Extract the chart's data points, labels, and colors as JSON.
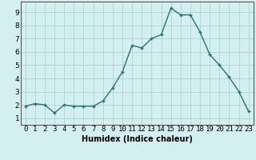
{
  "title": "",
  "xlabel": "Humidex (Indice chaleur)",
  "ylabel": "",
  "x": [
    0,
    1,
    2,
    3,
    4,
    5,
    6,
    7,
    8,
    9,
    10,
    11,
    12,
    13,
    14,
    15,
    16,
    17,
    18,
    19,
    20,
    21,
    22,
    23
  ],
  "y": [
    1.9,
    2.1,
    2.0,
    1.4,
    2.0,
    1.9,
    1.9,
    1.9,
    2.3,
    3.3,
    4.5,
    6.5,
    6.3,
    7.0,
    7.3,
    9.3,
    8.8,
    8.8,
    7.5,
    5.8,
    5.0,
    4.1,
    3.0,
    1.5
  ],
  "line_color": "#2d7070",
  "marker": "+",
  "marker_size": 3,
  "marker_lw": 1.0,
  "bg_color": "#d4efef",
  "grid_color": "#aed4d4",
  "ylim": [
    0.5,
    9.8
  ],
  "xlim": [
    -0.5,
    23.5
  ],
  "yticks": [
    1,
    2,
    3,
    4,
    5,
    6,
    7,
    8,
    9
  ],
  "xticks": [
    0,
    1,
    2,
    3,
    4,
    5,
    6,
    7,
    8,
    9,
    10,
    11,
    12,
    13,
    14,
    15,
    16,
    17,
    18,
    19,
    20,
    21,
    22,
    23
  ],
  "xlabel_fontsize": 7,
  "tick_fontsize": 6.5,
  "line_width": 1.0,
  "spine_color": "#555555"
}
